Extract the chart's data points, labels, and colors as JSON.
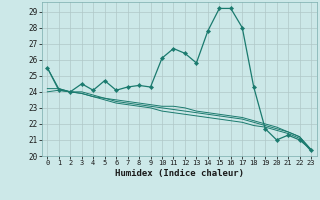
{
  "xlabel": "Humidex (Indice chaleur)",
  "background_color": "#cce8e8",
  "grid_color": "#b0c8c8",
  "line_color": "#1a7a6e",
  "xlim": [
    -0.5,
    23.5
  ],
  "ylim": [
    20,
    29.6
  ],
  "yticks": [
    20,
    21,
    22,
    23,
    24,
    25,
    26,
    27,
    28,
    29
  ],
  "xticks": [
    0,
    1,
    2,
    3,
    4,
    5,
    6,
    7,
    8,
    9,
    10,
    11,
    12,
    13,
    14,
    15,
    16,
    17,
    18,
    19,
    20,
    21,
    22,
    23
  ],
  "series1_x": [
    0,
    1,
    2,
    3,
    4,
    5,
    6,
    7,
    8,
    9,
    10,
    11,
    12,
    13,
    14,
    15,
    16,
    17,
    18,
    19,
    20,
    21,
    22,
    23
  ],
  "series1_y": [
    25.5,
    24.1,
    24.0,
    24.5,
    24.1,
    24.7,
    24.1,
    24.3,
    24.4,
    24.3,
    26.1,
    26.7,
    26.4,
    25.8,
    27.8,
    29.2,
    29.2,
    28.0,
    24.3,
    21.7,
    21.0,
    21.3,
    21.0,
    20.4
  ],
  "series2_x": [
    0,
    1,
    2,
    3,
    4,
    5,
    6,
    7,
    8,
    9,
    10,
    11,
    12,
    13,
    14,
    15,
    16,
    17,
    18,
    19,
    20,
    21,
    22,
    23
  ],
  "series2_y": [
    25.5,
    24.2,
    24.0,
    24.0,
    23.8,
    23.6,
    23.5,
    23.4,
    23.3,
    23.2,
    23.1,
    23.1,
    23.0,
    22.8,
    22.7,
    22.6,
    22.5,
    22.4,
    22.2,
    22.0,
    21.8,
    21.5,
    21.2,
    20.4
  ],
  "series3_x": [
    0,
    1,
    2,
    3,
    4,
    5,
    6,
    7,
    8,
    9,
    10,
    11,
    12,
    13,
    14,
    15,
    16,
    17,
    18,
    19,
    20,
    21,
    22,
    23
  ],
  "series3_y": [
    24.2,
    24.2,
    24.0,
    23.9,
    23.7,
    23.6,
    23.4,
    23.3,
    23.2,
    23.1,
    23.0,
    22.9,
    22.8,
    22.7,
    22.6,
    22.5,
    22.4,
    22.3,
    22.1,
    21.9,
    21.7,
    21.5,
    21.2,
    20.4
  ],
  "series4_x": [
    0,
    1,
    2,
    3,
    4,
    5,
    6,
    7,
    8,
    9,
    10,
    11,
    12,
    13,
    14,
    15,
    16,
    17,
    18,
    19,
    20,
    21,
    22,
    23
  ],
  "series4_y": [
    24.0,
    24.1,
    24.0,
    23.9,
    23.7,
    23.5,
    23.3,
    23.2,
    23.1,
    23.0,
    22.8,
    22.7,
    22.6,
    22.5,
    22.4,
    22.3,
    22.2,
    22.1,
    21.9,
    21.8,
    21.6,
    21.4,
    21.1,
    20.3
  ]
}
